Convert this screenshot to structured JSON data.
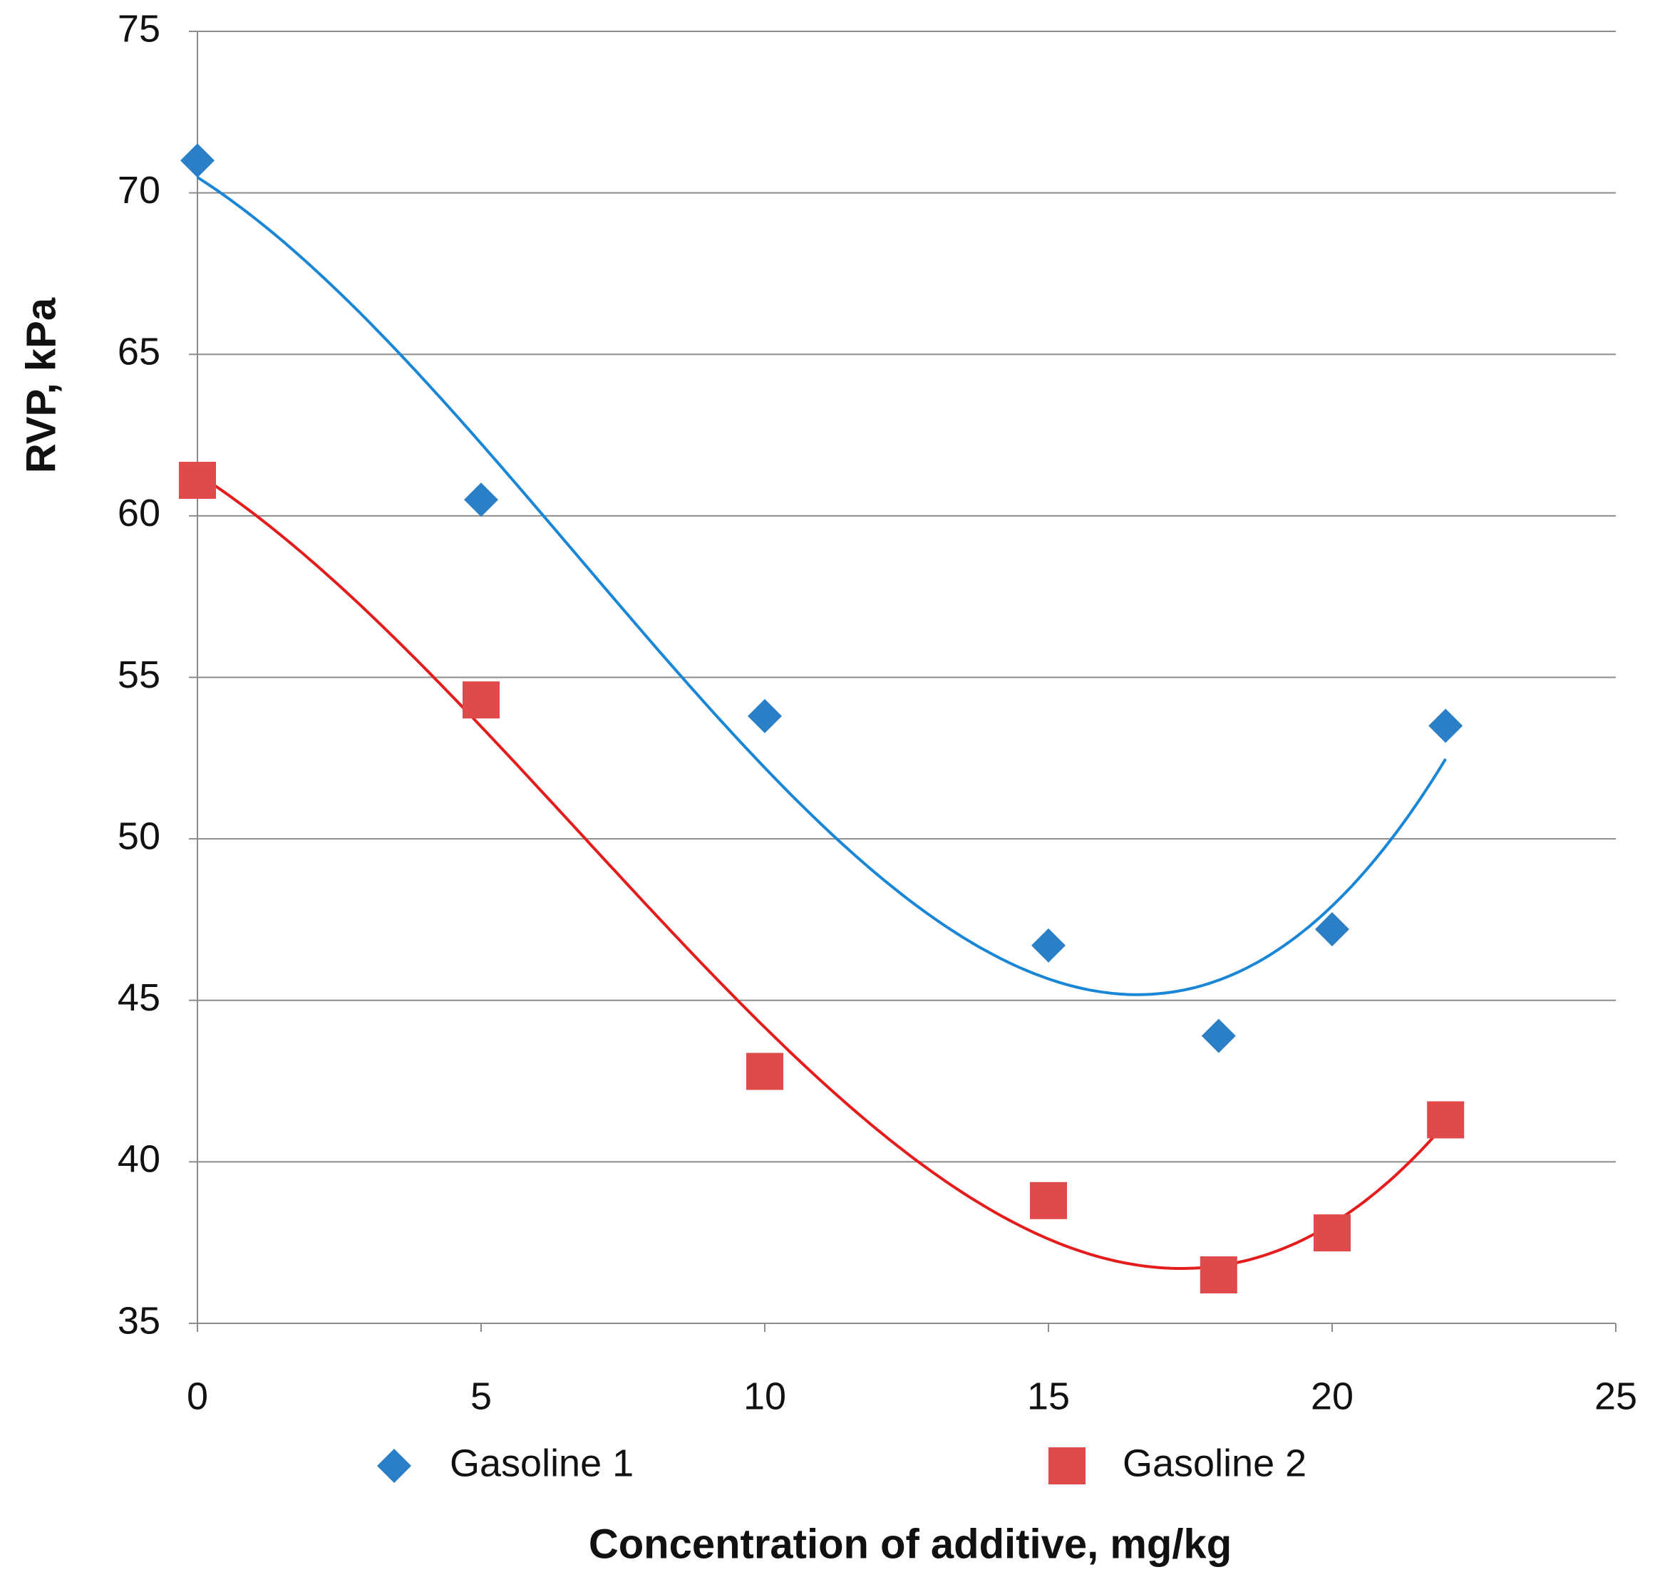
{
  "chart_data": {
    "type": "scatter",
    "xlabel": "Concentration of additive, mg/kg",
    "ylabel": "RVP, kPa",
    "xlim": [
      0,
      25
    ],
    "xticks": [
      0,
      5,
      10,
      15,
      20,
      25
    ],
    "ylim": [
      35,
      75
    ],
    "yticks": [
      35,
      40,
      45,
      50,
      55,
      60,
      65,
      70,
      75
    ],
    "grid": true,
    "legend": "bottom",
    "trendline": "polynomial",
    "series": [
      {
        "name": "Gasoline 1",
        "color": "#2b7fc6",
        "line_color": "#1a86d6",
        "marker": "diamond",
        "x": [
          0,
          5,
          10,
          15,
          18,
          20,
          22
        ],
        "values": [
          71,
          60.5,
          53.8,
          46.7,
          43.9,
          47.2,
          53.5
        ]
      },
      {
        "name": "Gasoline 2",
        "color": "#e04a4a",
        "line_color": "#e51c1c",
        "marker": "square",
        "x": [
          0,
          5,
          10,
          15,
          18,
          20,
          22
        ],
        "values": [
          61.1,
          54.3,
          42.8,
          38.8,
          36.5,
          37.8,
          41.3
        ]
      }
    ]
  }
}
